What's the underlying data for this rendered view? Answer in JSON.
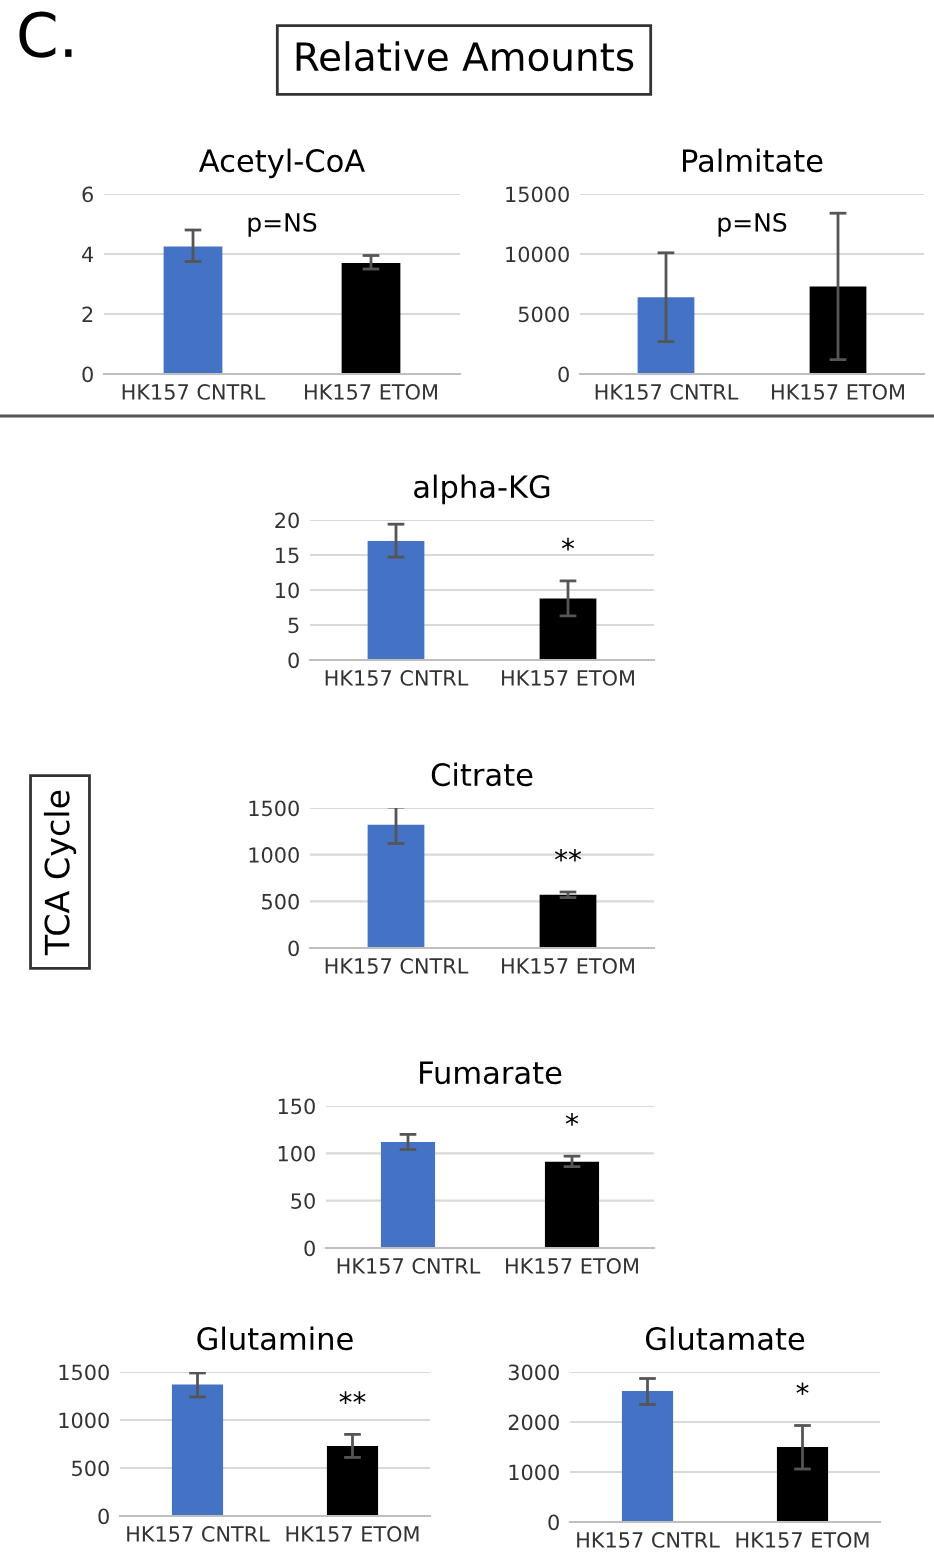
{
  "chart_data": [
    {
      "type": "other",
      "annotations": [
        "C.",
        "Relative Amounts",
        "TCA Cycle"
      ]
    },
    {
      "type": "bar",
      "title": "Acetyl-CoA",
      "categories": [
        "HK157 CNTRL",
        "HK157 ETOM"
      ],
      "values": [
        4.25,
        3.7
      ],
      "colors": [
        "#4472c4",
        "#000000"
      ],
      "errors": [
        [
          3.75,
          4.8
        ],
        [
          3.5,
          3.95
        ]
      ],
      "ylim": [
        0,
        6
      ],
      "yticks": [
        0,
        2,
        4,
        6
      ],
      "grid": "y",
      "annotations": [
        "p=NS"
      ]
    },
    {
      "type": "bar",
      "title": "Palmitate",
      "categories": [
        "HK157 CNTRL",
        "HK157 ETOM"
      ],
      "values": [
        6400,
        7300
      ],
      "colors": [
        "#4472c4",
        "#000000"
      ],
      "errors": [
        [
          2700,
          10100
        ],
        [
          1200,
          13400
        ]
      ],
      "ylim": [
        0,
        15000
      ],
      "yticks": [
        0,
        5000,
        10000,
        15000
      ],
      "grid": "y",
      "annotations": [
        "p=NS"
      ]
    },
    {
      "type": "bar",
      "title": "alpha-KG",
      "categories": [
        "HK157 CNTRL",
        "HK157 ETOM"
      ],
      "values": [
        17,
        8.8
      ],
      "colors": [
        "#4472c4",
        "#000000"
      ],
      "errors": [
        [
          14.7,
          19.4
        ],
        [
          6.3,
          11.3
        ]
      ],
      "ylim": [
        0,
        20
      ],
      "yticks": [
        0,
        5,
        10,
        15,
        20
      ],
      "grid": "y",
      "annotations": [
        {
          "text": "*",
          "x": "HK157 ETOM",
          "y": 11.3
        }
      ]
    },
    {
      "type": "bar",
      "title": "Citrate",
      "categories": [
        "HK157 CNTRL",
        "HK157 ETOM"
      ],
      "values": [
        1320,
        570
      ],
      "colors": [
        "#4472c4",
        "#000000"
      ],
      "errors": [
        [
          1120,
          1510
        ],
        [
          540,
          600
        ]
      ],
      "ylim": [
        0,
        1500
      ],
      "yticks": [
        0,
        500,
        1000,
        1500
      ],
      "grid": "y",
      "annotations": [
        {
          "text": "**",
          "x": "HK157 ETOM",
          "y": 600
        }
      ]
    },
    {
      "type": "bar",
      "title": "Fumarate",
      "categories": [
        "HK157 CNTRL",
        "HK157 ETOM"
      ],
      "values": [
        112,
        91
      ],
      "colors": [
        "#4472c4",
        "#000000"
      ],
      "errors": [
        [
          104,
          120
        ],
        [
          86,
          97
        ]
      ],
      "ylim": [
        0,
        150
      ],
      "yticks": [
        0,
        50,
        100,
        150
      ],
      "grid": "y",
      "annotations": [
        {
          "text": "*",
          "x": "HK157 ETOM",
          "y": 97
        }
      ]
    },
    {
      "type": "bar",
      "title": "Glutamine",
      "categories": [
        "HK157 CNTRL",
        "HK157 ETOM"
      ],
      "values": [
        1370,
        730
      ],
      "colors": [
        "#4472c4",
        "#000000"
      ],
      "errors": [
        [
          1240,
          1490
        ],
        [
          610,
          850
        ]
      ],
      "ylim": [
        0,
        1500
      ],
      "yticks": [
        0,
        500,
        1000,
        1500
      ],
      "grid": "y",
      "annotations": [
        {
          "text": "**",
          "x": "HK157 ETOM",
          "y": 850
        }
      ]
    },
    {
      "type": "bar",
      "title": "Glutamate",
      "categories": [
        "HK157 CNTRL",
        "HK157 ETOM"
      ],
      "values": [
        2620,
        1500
      ],
      "colors": [
        "#4472c4",
        "#000000"
      ],
      "errors": [
        [
          2350,
          2870
        ],
        [
          1060,
          1930
        ]
      ],
      "ylim": [
        0,
        3000
      ],
      "yticks": [
        0,
        1000,
        2000,
        3000
      ],
      "grid": "y",
      "annotations": [
        {
          "text": "*",
          "x": "HK157 ETOM",
          "y": 1930
        }
      ]
    }
  ]
}
